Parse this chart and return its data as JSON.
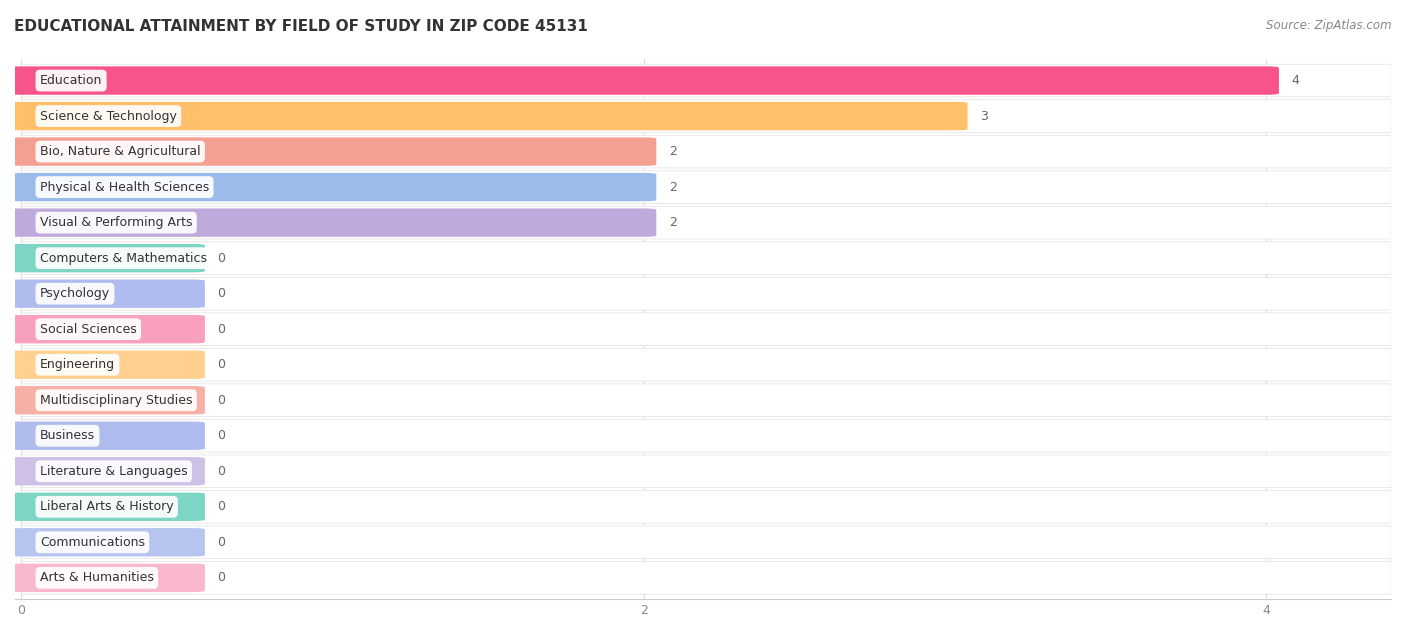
{
  "title": "EDUCATIONAL ATTAINMENT BY FIELD OF STUDY IN ZIP CODE 45131",
  "source": "Source: ZipAtlas.com",
  "categories": [
    "Education",
    "Science & Technology",
    "Bio, Nature & Agricultural",
    "Physical & Health Sciences",
    "Visual & Performing Arts",
    "Computers & Mathematics",
    "Psychology",
    "Social Sciences",
    "Engineering",
    "Multidisciplinary Studies",
    "Business",
    "Literature & Languages",
    "Liberal Arts & History",
    "Communications",
    "Arts & Humanities"
  ],
  "values": [
    4,
    3,
    2,
    2,
    2,
    0,
    0,
    0,
    0,
    0,
    0,
    0,
    0,
    0,
    0
  ],
  "bar_colors": [
    "#F7558A",
    "#FFBF6B",
    "#F4A090",
    "#9BBCE8",
    "#C0AADB",
    "#7DD5C5",
    "#B0BCED",
    "#F9A0BC",
    "#FFD090",
    "#F7B0A5",
    "#B0BCED",
    "#CFC0E8",
    "#7DD5C5",
    "#B8C4F0",
    "#F9B8CB"
  ],
  "xlim": [
    0,
    4.4
  ],
  "xticks": [
    0,
    2,
    4
  ],
  "background_color": "#ffffff",
  "row_bg_color": "#f5f5f5",
  "row_line_color": "#e0e0e0",
  "title_fontsize": 11,
  "label_fontsize": 9,
  "value_fontsize": 9,
  "zero_bar_width": 0.55
}
